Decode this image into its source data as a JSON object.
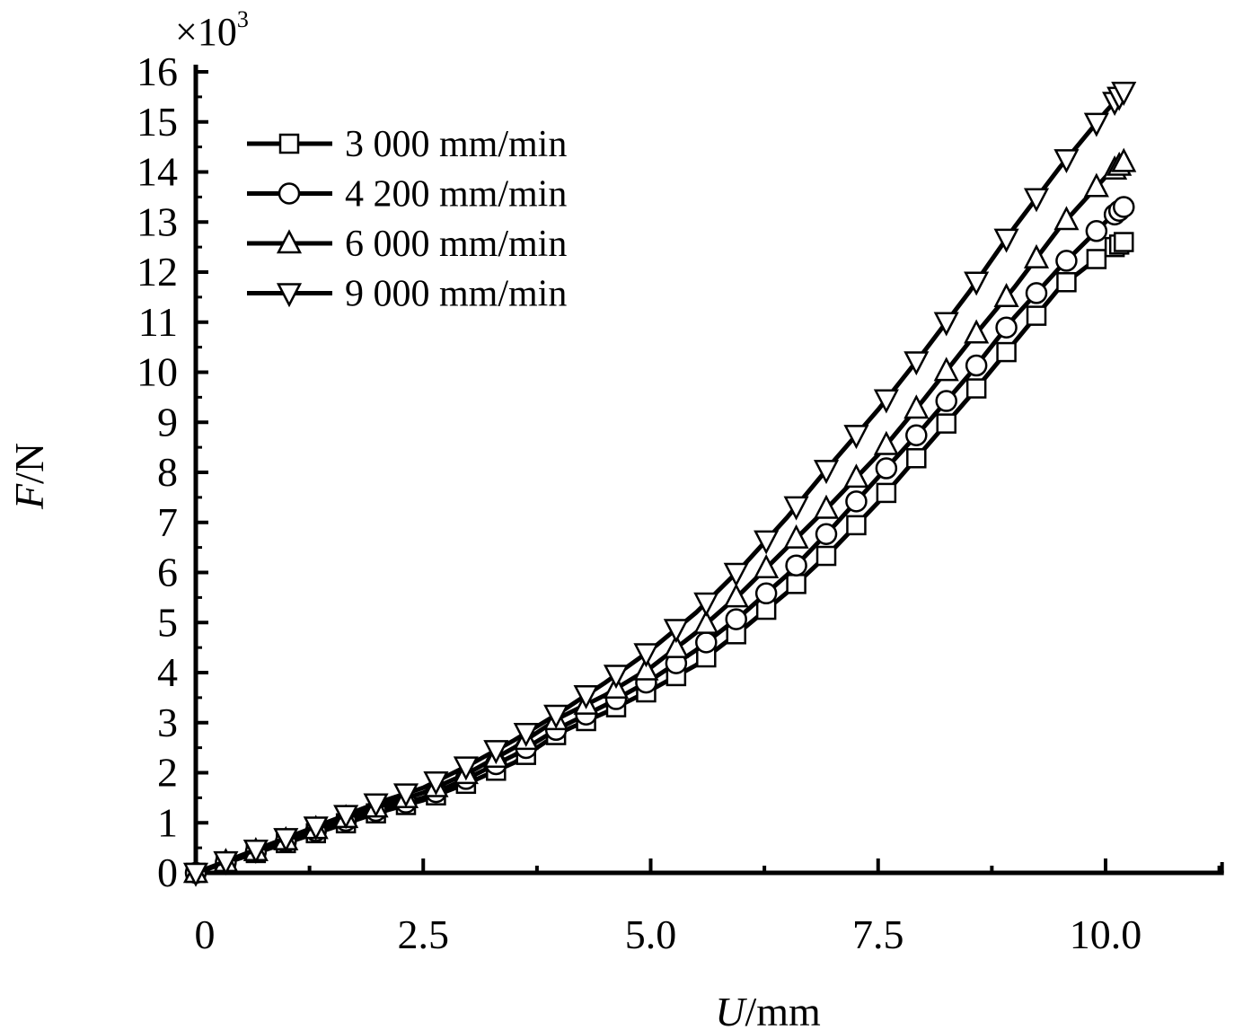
{
  "chart_data": {
    "type": "line",
    "xlabel": "U/mm",
    "xlabel_italic": "U",
    "xlabel_unit": "/mm",
    "ylabel": "F/N",
    "ylabel_italic": "F",
    "ylabel_unit": "/N",
    "y_multiplier": "×10",
    "y_multiplier_exp": "3",
    "xlim": [
      0,
      11.3
    ],
    "ylim": [
      0,
      16
    ],
    "xticks": [
      "0",
      "2.5",
      "5.0",
      "7.5",
      "10.0"
    ],
    "xtick_values": [
      0,
      2.5,
      5,
      7.5,
      10
    ],
    "yticks": [
      "0",
      "1",
      "2",
      "3",
      "4",
      "5",
      "6",
      "7",
      "8",
      "9",
      "10",
      "11",
      "12",
      "13",
      "14",
      "15",
      "16"
    ],
    "grid": false,
    "legend_position": "top-left",
    "x": [
      0,
      0.5,
      1,
      1.5,
      2,
      2.5,
      3,
      3.5,
      4,
      4.5,
      5,
      5.5,
      6,
      6.5,
      7,
      7.5,
      8,
      8.5,
      9,
      9.5,
      10,
      10.2
    ],
    "series": [
      {
        "name": "3 000 mm/min",
        "marker": "square",
        "values": [
          0,
          0.3,
          0.6,
          0.9,
          1.2,
          1.45,
          1.8,
          2.2,
          2.8,
          3.2,
          3.65,
          4.15,
          4.85,
          5.6,
          6.45,
          7.4,
          8.45,
          9.5,
          10.6,
          11.7,
          12.4,
          12.6
        ]
      },
      {
        "name": "4 200 mm/min",
        "marker": "circle",
        "values": [
          0,
          0.32,
          0.63,
          0.95,
          1.25,
          1.5,
          1.9,
          2.35,
          2.9,
          3.35,
          3.85,
          4.45,
          5.15,
          5.95,
          6.9,
          7.9,
          8.9,
          9.95,
          11.1,
          12.1,
          13.0,
          13.3
        ]
      },
      {
        "name": "6 000 mm/min",
        "marker": "triangle-up",
        "values": [
          0,
          0.33,
          0.66,
          1.0,
          1.32,
          1.6,
          2.0,
          2.5,
          3.1,
          3.55,
          4.1,
          4.8,
          5.6,
          6.5,
          7.4,
          8.35,
          9.45,
          10.6,
          11.7,
          12.9,
          13.9,
          14.2
        ]
      },
      {
        "name": "9 000 mm/min",
        "marker": "triangle-down",
        "values": [
          0,
          0.35,
          0.7,
          1.05,
          1.4,
          1.7,
          2.15,
          2.65,
          3.2,
          3.8,
          4.45,
          5.2,
          6.1,
          7.1,
          8.2,
          9.25,
          10.4,
          11.6,
          12.9,
          14.1,
          15.2,
          15.6
        ]
      }
    ]
  }
}
